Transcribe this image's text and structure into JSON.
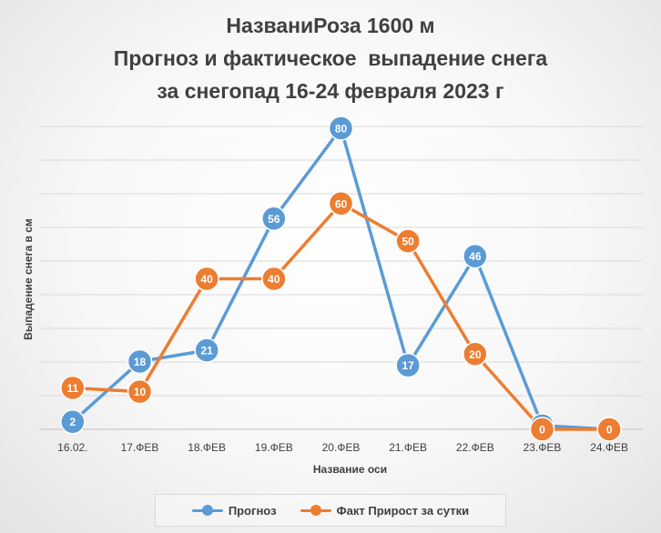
{
  "chart_data": {
    "type": "line",
    "title_lines": [
      "НазваниРоза 1600 м",
      "Прогноз и фактическое  выпадение снега",
      "за снегопад 16-24 февраля 2023 г"
    ],
    "xlabel": "Название оси",
    "ylabel": "Выпадение снега в см",
    "categories": [
      "16.02.",
      "17.ФЕВ",
      "18.ФЕВ",
      "19.ФЕВ",
      "20.ФЕВ",
      "21.ФЕВ",
      "22.ФЕВ",
      "23.ФЕВ",
      "24.ФЕВ"
    ],
    "ylim": [
      0,
      80
    ],
    "grid": true,
    "legend_position": "bottom",
    "series": [
      {
        "name": "Прогноз",
        "color": "#5B9BD5",
        "values": [
          2,
          18,
          21,
          56,
          80,
          17,
          46,
          1,
          0
        ],
        "labels": [
          "2",
          "18",
          "21",
          "56",
          "80",
          "17",
          "46",
          "1",
          ""
        ]
      },
      {
        "name": "Факт Прирост за сутки",
        "color": "#ED7D31",
        "values": [
          11,
          10,
          40,
          40,
          60,
          50,
          20,
          0,
          0
        ],
        "labels": [
          "11",
          "10",
          "40",
          "40",
          "60",
          "50",
          "20",
          "0",
          "0"
        ]
      }
    ]
  }
}
